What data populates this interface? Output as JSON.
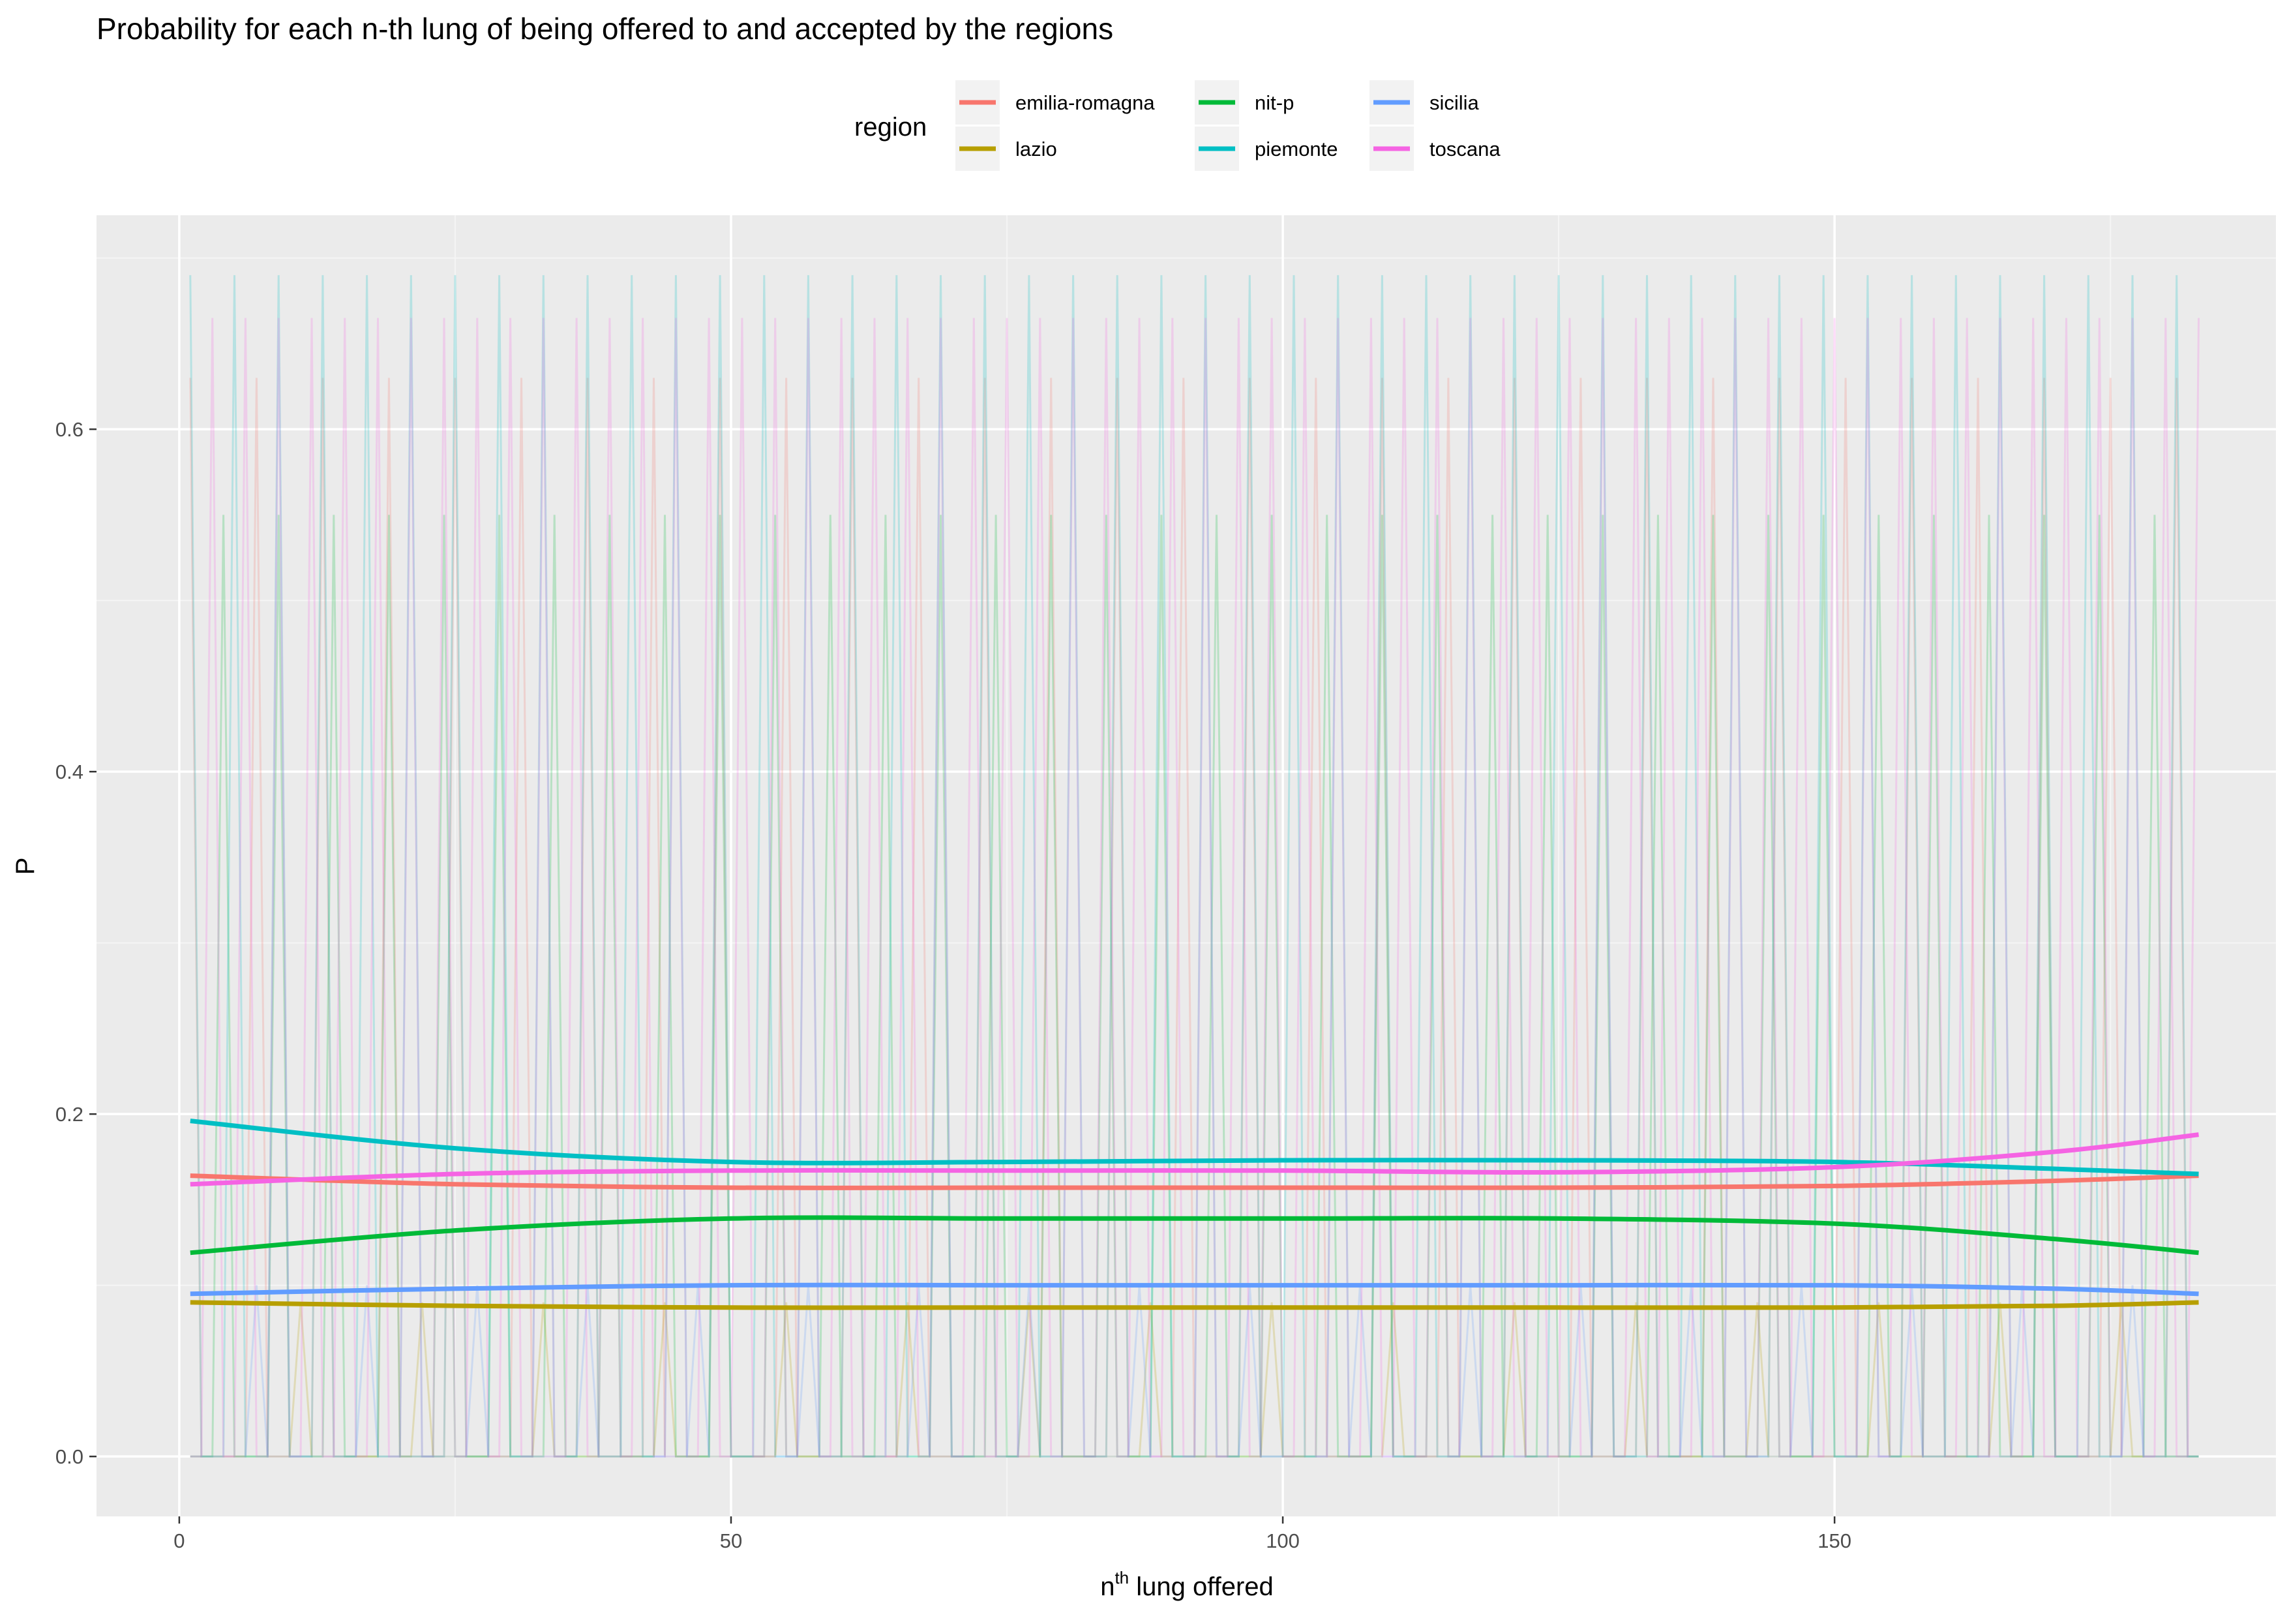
{
  "chart_data": {
    "type": "line",
    "title": "Probability for each n-th lung of being offered to and accepted by the regions",
    "xlabel": {
      "base": "n",
      "superscript": "th",
      "rest": " lung offered"
    },
    "ylabel": "P",
    "xlim": [
      -7.5,
      190
    ],
    "ylim": [
      -0.035,
      0.725
    ],
    "x_ticks": [
      0,
      50,
      100,
      150
    ],
    "x_tick_labels": [
      "0",
      "50",
      "100",
      "150"
    ],
    "y_ticks": [
      0.0,
      0.2,
      0.4,
      0.6
    ],
    "y_tick_labels": [
      "0.0",
      "0.2",
      "0.4",
      "0.6"
    ],
    "grid": true,
    "legend": {
      "title": "region",
      "position": "top"
    },
    "x_range": [
      1,
      183
    ],
    "series": [
      {
        "name": "emilia-romagna",
        "color": "#F8766D",
        "raw_period": 6,
        "raw_phase": 0,
        "raw_peak": 0.63,
        "smooth_x": [
          1,
          25,
          50,
          75,
          100,
          125,
          150,
          170,
          183
        ],
        "smooth_y": [
          0.164,
          0.159,
          0.157,
          0.157,
          0.157,
          0.157,
          0.158,
          0.161,
          0.164
        ]
      },
      {
        "name": "lazio",
        "color": "#B79F00",
        "raw_period": 11,
        "raw_phase": 1,
        "raw_peak": 0.09,
        "smooth_x": [
          1,
          25,
          50,
          75,
          100,
          125,
          150,
          170,
          183
        ],
        "smooth_y": [
          0.09,
          0.088,
          0.087,
          0.087,
          0.087,
          0.087,
          0.087,
          0.088,
          0.09
        ]
      },
      {
        "name": "nit-p",
        "color": "#00BA38",
        "raw_period": 5,
        "raw_phase": 2,
        "raw_peak": 0.55,
        "smooth_x": [
          1,
          25,
          50,
          75,
          100,
          125,
          150,
          170,
          183
        ],
        "smooth_y": [
          0.119,
          0.132,
          0.139,
          0.139,
          0.139,
          0.139,
          0.136,
          0.127,
          0.119
        ]
      },
      {
        "name": "piemonte",
        "color": "#00BFC4",
        "raw_period": 4,
        "raw_phase": 0,
        "raw_peak": 0.69,
        "smooth_x": [
          1,
          25,
          50,
          75,
          100,
          125,
          150,
          170,
          183
        ],
        "smooth_y": [
          0.196,
          0.18,
          0.172,
          0.172,
          0.173,
          0.173,
          0.172,
          0.168,
          0.165
        ]
      },
      {
        "name": "sicilia",
        "color": "#619CFF",
        "raw_period": 10,
        "raw_phase": 4,
        "raw_peak": 0.1,
        "smooth_x": [
          1,
          25,
          50,
          75,
          100,
          125,
          150,
          170,
          183
        ],
        "smooth_y": [
          0.095,
          0.098,
          0.1,
          0.1,
          0.1,
          0.1,
          0.1,
          0.098,
          0.095
        ]
      },
      {
        "name": "toscana",
        "color": "#F564E3",
        "raw_period": 3,
        "raw_phase": 1,
        "raw_peak": 0.665,
        "smooth_x": [
          1,
          25,
          50,
          75,
          100,
          125,
          150,
          170,
          183
        ],
        "smooth_y": [
          0.159,
          0.165,
          0.167,
          0.167,
          0.167,
          0.166,
          0.169,
          0.178,
          0.188
        ]
      }
    ]
  }
}
